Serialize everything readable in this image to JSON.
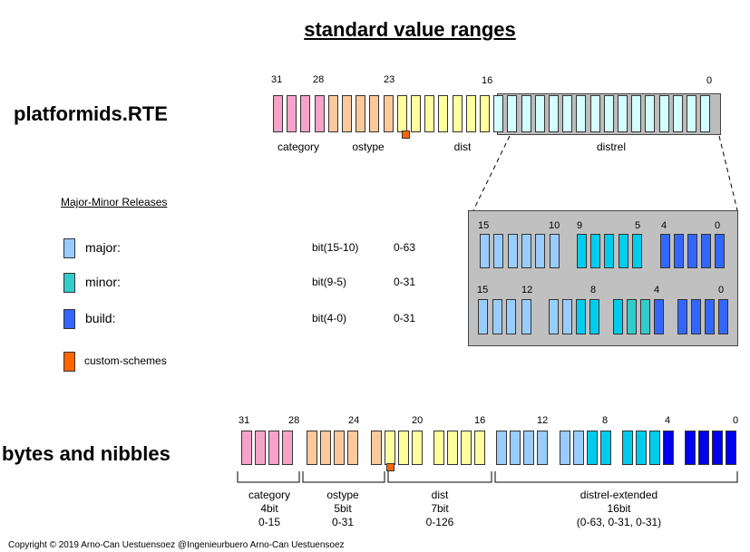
{
  "title": "standard value ranges",
  "colors": {
    "pink": "#f7a3c9",
    "peach": "#fbc99b",
    "yellow": "#ffff9e",
    "cyan_light": "#d3ffff",
    "major": "#99ccff",
    "minor": "#33cccc",
    "minor_bright": "#00ccee",
    "build": "#3366ff",
    "build_dark": "#0000ee",
    "custom": "#ff6600",
    "panel": "#c0c0c0"
  },
  "platformids": {
    "name": "platformids.RTE",
    "bit_labels": [
      {
        "bit": 31,
        "text": "31"
      },
      {
        "bit": 28,
        "text": "28"
      },
      {
        "bit": 23,
        "text": "23"
      },
      {
        "bit": 16,
        "text": "16"
      },
      {
        "bit": 0,
        "text": "0"
      }
    ],
    "fields": [
      {
        "label": "category",
        "from": 31,
        "to": 28,
        "color": "pink"
      },
      {
        "label": "ostype",
        "from": 27,
        "to": 23,
        "color": "peach"
      },
      {
        "label": "dist",
        "from": 22,
        "to": 16,
        "color": "yellow"
      },
      {
        "label": "distrel",
        "from": 15,
        "to": 0,
        "color": "cyan_light"
      }
    ]
  },
  "legend": {
    "heading": "Major-Minor Releases",
    "items": [
      {
        "label": "major:",
        "bits": "bit(15-10)",
        "range": "0-63",
        "color": "major",
        "icon": "major-swatch"
      },
      {
        "label": "minor:",
        "bits": "bit(9-5)",
        "range": "0-31",
        "color": "minor",
        "icon": "minor-swatch"
      },
      {
        "label": "build:",
        "bits": "bit(4-0)",
        "range": "0-31",
        "color": "build",
        "icon": "build-swatch"
      },
      {
        "label": "custom-schemes",
        "bits": "",
        "range": "",
        "color": "custom",
        "icon": "custom-swatch"
      }
    ]
  },
  "detail": {
    "row1_labels": [
      "15",
      "10",
      "9",
      "5",
      "4",
      "0"
    ],
    "row2_labels": [
      "15",
      "12",
      "8",
      "4",
      "0"
    ]
  },
  "bytes": {
    "name": "bytes and nibbles",
    "bit_labels": [
      "31",
      "28",
      "24",
      "20",
      "16",
      "12",
      "8",
      "4",
      "0"
    ],
    "groups": [
      {
        "name": "category",
        "size": "4bit",
        "range": "0-15"
      },
      {
        "name": "ostype",
        "size": "5bit",
        "range": "0-31"
      },
      {
        "name": "dist",
        "size": "7bit",
        "range": "0-126"
      },
      {
        "name": "distrel-extended",
        "size": "16bit",
        "range": "(0-63, 0-31, 0-31)"
      }
    ]
  },
  "copyright": "Copyright © 2019 Arno-Can Uestuensoez @Ingenieurbuero Arno-Can Uestuensoez"
}
